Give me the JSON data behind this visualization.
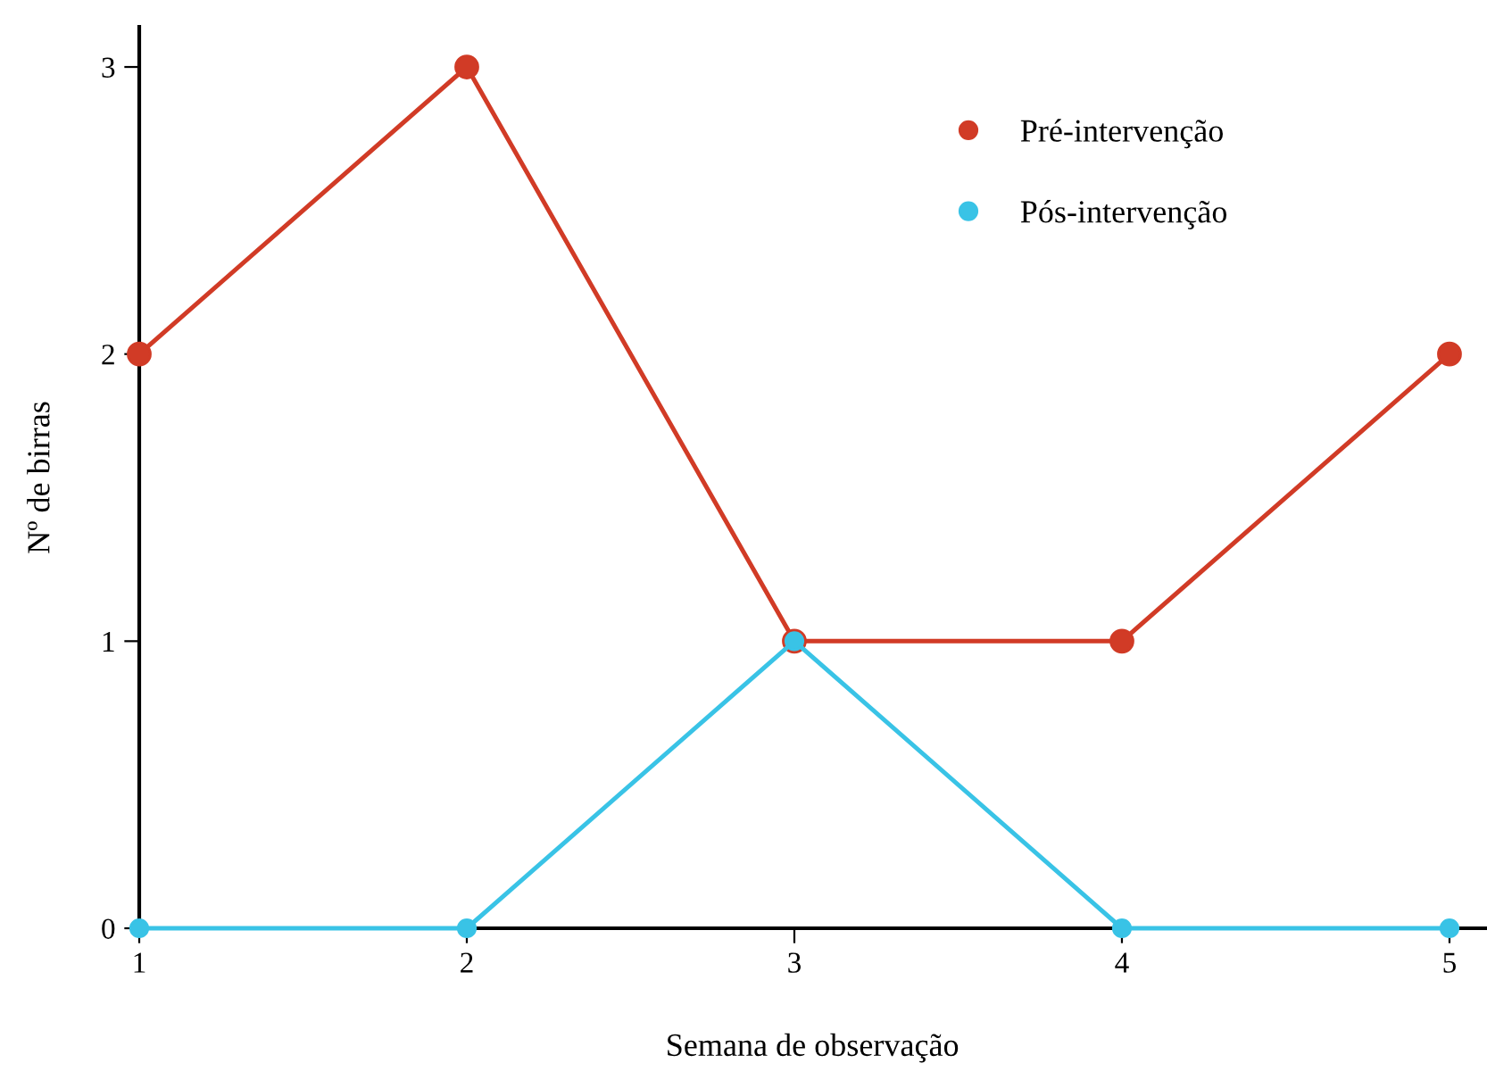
{
  "chart_data": {
    "type": "line",
    "xlabel": "Semana de observação",
    "ylabel": "Nº de birras",
    "x": [
      1,
      2,
      3,
      4,
      5
    ],
    "series": [
      {
        "name": "Pré-intervenção",
        "color": "#d13b26",
        "values": [
          2,
          3,
          1,
          1,
          2
        ]
      },
      {
        "name": "Pós-intervenção",
        "color": "#39c3e6",
        "values": [
          0,
          0,
          1,
          0,
          0
        ]
      }
    ],
    "xlim": [
      1,
      5.11
    ],
    "ylim": [
      0,
      3.14
    ],
    "xticks": [
      1,
      2,
      3,
      4,
      5
    ],
    "yticks": [
      0,
      1,
      2,
      3
    ],
    "grid": false,
    "legend": "top right",
    "marker": "circle",
    "line_style": "solid"
  }
}
